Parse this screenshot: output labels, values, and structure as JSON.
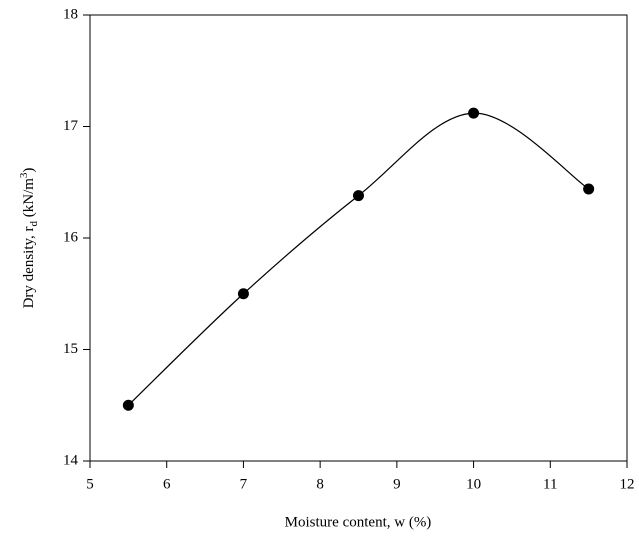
{
  "chart_data": {
    "type": "scatter",
    "x_label": "Moisture content, w (%)",
    "y_label": [
      "Dry density, r",
      "d",
      " (kN/m",
      "3",
      ")"
    ],
    "x": [
      5.5,
      7,
      8.5,
      10,
      11.5
    ],
    "values": [
      14.5,
      15.5,
      16.38,
      17.12,
      16.44
    ],
    "color": "#000000",
    "smooth_line": true,
    "xlim": [
      5,
      12
    ],
    "xticks": [
      5,
      6,
      7,
      8,
      9,
      10,
      11,
      12
    ],
    "ylim": [
      14,
      18
    ],
    "yticks": [
      14,
      15,
      16,
      17,
      18
    ],
    "grid": false
  }
}
